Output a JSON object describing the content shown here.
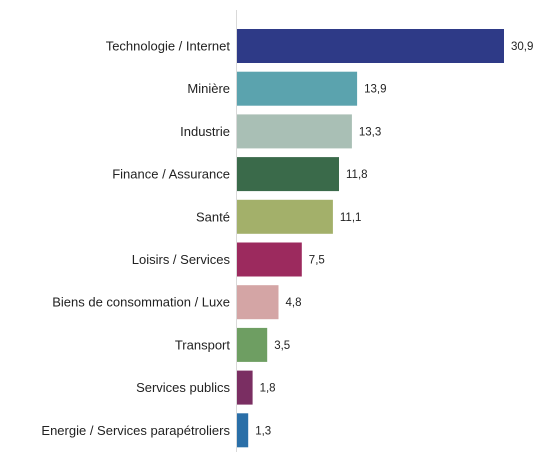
{
  "chart_data": {
    "type": "bar",
    "orientation": "horizontal",
    "categories": [
      "Technologie / Internet",
      "Minière",
      "Industrie",
      "Finance / Assurance",
      "Santé",
      "Loisirs / Services",
      "Biens de consommation / Luxe",
      "Transport",
      "Services publics",
      "Energie / Services parapétroliers"
    ],
    "values": [
      30.9,
      13.9,
      13.3,
      11.8,
      11.1,
      7.5,
      4.8,
      3.5,
      1.8,
      1.3
    ],
    "value_labels": [
      "30,9",
      "13,9",
      "13,3",
      "11,8",
      "11,1",
      "7,5",
      "4,8",
      "3,5",
      "1,8",
      "1,3"
    ],
    "colors": [
      "#2e3a87",
      "#5ba3ae",
      "#a9bfb5",
      "#3a6a4a",
      "#a3b06a",
      "#9c2a5e",
      "#d4a5a5",
      "#6e9e62",
      "#7a2e62",
      "#2a6fa8"
    ],
    "title": "",
    "xlabel": "",
    "ylabel": "",
    "xlim": [
      0,
      30.9
    ],
    "grid": false,
    "legend": "none"
  }
}
